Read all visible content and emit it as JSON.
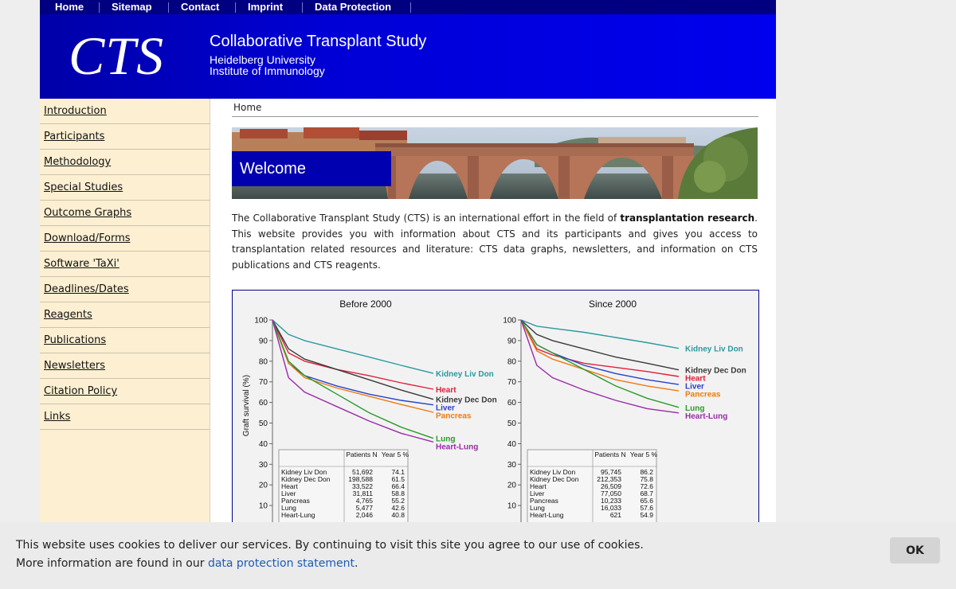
{
  "topnav": [
    {
      "label": "Home",
      "name": "topnav-home"
    },
    {
      "label": "Sitemap",
      "name": "topnav-sitemap"
    },
    {
      "label": "Contact",
      "name": "topnav-contact"
    },
    {
      "label": "Imprint",
      "name": "topnav-imprint"
    },
    {
      "label": "Data Protection",
      "name": "topnav-data-protection"
    }
  ],
  "banner": {
    "logo": "CTS",
    "title": "Collaborative Transplant Study",
    "subtitle1": "Heidelberg University",
    "subtitle2": "Institute of Immunology"
  },
  "sidebar": {
    "items": [
      {
        "label": "Introduction"
      },
      {
        "label": "Participants"
      },
      {
        "label": "Methodology"
      },
      {
        "label": "Special Studies"
      },
      {
        "label": "Outcome Graphs"
      },
      {
        "label": "Download/Forms"
      },
      {
        "label": "Software 'TaXi'"
      },
      {
        "label": "Deadlines/Dates"
      },
      {
        "label": "Reagents"
      },
      {
        "label": "Publications"
      },
      {
        "label": "Newsletters"
      },
      {
        "label": "Citation Policy"
      },
      {
        "label": "Links"
      }
    ]
  },
  "breadcrumb": "Home",
  "hero": {
    "welcome": "Welcome"
  },
  "intro": {
    "p1": "The Collaborative Transplant Study (CTS) is an international effort in the field of ",
    "bold": "transplantation research",
    "p2": ". This website provides you with information about CTS and its participants and gives you access to transplantation related resources and literature: CTS data graphs, newsletters, and information on CTS publications and CTS reagents."
  },
  "chart_data": [
    {
      "type": "line",
      "title": "Before 2000",
      "ylabel": "Graft survival (%)",
      "ylim": [
        0,
        100
      ],
      "yticks": [
        10,
        20,
        30,
        40,
        50,
        60,
        70,
        80,
        90,
        100
      ],
      "x": [
        0,
        0.5,
        1,
        2,
        3,
        4,
        5
      ],
      "series": [
        {
          "name": "Kidney Liv Don",
          "color": "#2a9aa0",
          "values": [
            100,
            93,
            90,
            86,
            82,
            78,
            74.1
          ]
        },
        {
          "name": "Heart",
          "color": "#e0203a",
          "values": [
            100,
            84,
            80,
            76,
            73,
            69.5,
            66.4
          ]
        },
        {
          "name": "Kidney Dec Don",
          "color": "#3a3a3a",
          "values": [
            100,
            86,
            81,
            76,
            71,
            66,
            61.5
          ]
        },
        {
          "name": "Liver",
          "color": "#2a40c8",
          "values": [
            100,
            79,
            73,
            68,
            64,
            61,
            58.8
          ]
        },
        {
          "name": "Pancreas",
          "color": "#f07a10",
          "values": [
            100,
            79,
            72,
            67,
            63,
            59,
            55.2
          ]
        },
        {
          "name": "Lung",
          "color": "#2a9a2a",
          "values": [
            100,
            80,
            73,
            64,
            55,
            48,
            42.6
          ]
        },
        {
          "name": "Heart-Lung",
          "color": "#9a2aa8",
          "values": [
            100,
            72,
            65,
            58,
            51,
            45,
            40.8
          ]
        }
      ],
      "table": {
        "headers": [
          "",
          "Patients N",
          "Year 5 %"
        ],
        "rows": [
          [
            "Kidney Liv Don",
            "51,692",
            "74.1"
          ],
          [
            "Kidney Dec Don",
            "198,588",
            "61.5"
          ],
          [
            "Heart",
            "33,522",
            "66.4"
          ],
          [
            "Liver",
            "31,811",
            "58.8"
          ],
          [
            "Pancreas",
            "4,765",
            "55.2"
          ],
          [
            "Lung",
            "5,477",
            "42.6"
          ],
          [
            "Heart-Lung",
            "2,046",
            "40.8"
          ]
        ]
      }
    },
    {
      "type": "line",
      "title": "Since 2000",
      "ylabel": "",
      "ylim": [
        0,
        100
      ],
      "yticks": [
        10,
        20,
        30,
        40,
        50,
        60,
        70,
        80,
        90,
        100
      ],
      "x": [
        0,
        0.5,
        1,
        2,
        3,
        4,
        5
      ],
      "series": [
        {
          "name": "Kidney Liv Don",
          "color": "#2a9aa0",
          "values": [
            100,
            97,
            96,
            94,
            91.5,
            89,
            86.2
          ]
        },
        {
          "name": "Kidney Dec Don",
          "color": "#3a3a3a",
          "values": [
            100,
            93,
            90,
            86,
            82,
            79,
            75.8
          ]
        },
        {
          "name": "Heart",
          "color": "#e0203a",
          "values": [
            100,
            86,
            83,
            79,
            77,
            75,
            72.6
          ]
        },
        {
          "name": "Liver",
          "color": "#2a40c8",
          "values": [
            100,
            88,
            84,
            78,
            74,
            71,
            68.7
          ]
        },
        {
          "name": "Pancreas",
          "color": "#f07a10",
          "values": [
            100,
            85,
            81,
            76,
            71,
            68,
            65.6
          ]
        },
        {
          "name": "Lung",
          "color": "#2a9a2a",
          "values": [
            100,
            88,
            84,
            76,
            68,
            62,
            57.6
          ]
        },
        {
          "name": "Heart-Lung",
          "color": "#9a2aa8",
          "values": [
            100,
            78,
            72,
            66,
            61,
            57,
            54.9
          ]
        }
      ],
      "table": {
        "headers": [
          "",
          "Patients N",
          "Year 5 %"
        ],
        "rows": [
          [
            "Kidney Liv Don",
            "95,745",
            "86.2"
          ],
          [
            "Kidney Dec Don",
            "212,353",
            "75.8"
          ],
          [
            "Heart",
            "26,509",
            "72.6"
          ],
          [
            "Liver",
            "77,050",
            "68.7"
          ],
          [
            "Pancreas",
            "10,233",
            "65.6"
          ],
          [
            "Lung",
            "16,033",
            "57.6"
          ],
          [
            "Heart-Lung",
            "621",
            "54.9"
          ]
        ]
      }
    }
  ],
  "cookie": {
    "line1": "This website uses cookies to deliver our services. By continuing to visit this site you agree to our use of cookies.",
    "line2_prefix": "More information are found in our ",
    "link": "data protection statement",
    "line2_suffix": ".",
    "ok": "OK"
  }
}
